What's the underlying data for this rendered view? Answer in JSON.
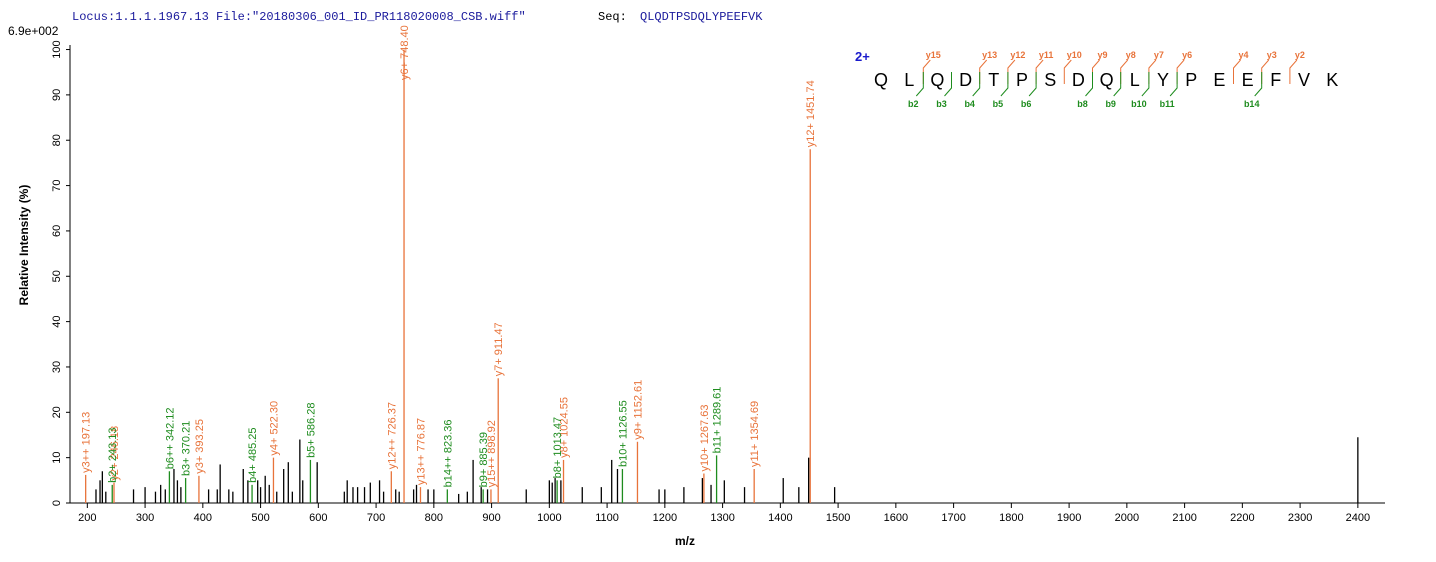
{
  "chart_data": {
    "type": "stick",
    "header": "Locus:1.1.1.1967.13 File:\"20180306_001_ID_PR118020008_CSB.wiff\"",
    "seq_label": "Seq:",
    "sequence": "QLQDTPSDQLYPEEFVK",
    "title": "6.9e+002",
    "y_label": "Relative   Intensity (%)",
    "x_label": "m/z",
    "charge": "2+",
    "xlim": [
      170,
      2447
    ],
    "ylim": [
      0,
      101
    ],
    "xticks": [
      200,
      300,
      400,
      500,
      600,
      700,
      800,
      900,
      1000,
      1100,
      1200,
      1300,
      1400,
      1500,
      1600,
      1700,
      1800,
      1900,
      2000,
      2100,
      2200,
      2300,
      2400
    ],
    "yticks": [
      0,
      10,
      20,
      30,
      40,
      50,
      60,
      70,
      80,
      90,
      100
    ],
    "residues": [
      "Q",
      "L",
      "Q",
      "D",
      "T",
      "P",
      "S",
      "D",
      "Q",
      "L",
      "Y",
      "P",
      "E",
      "E",
      "F",
      "V",
      "K"
    ],
    "y_ions": [
      "y15",
      "y13",
      "y12",
      "y11",
      "y10",
      "y9",
      "y8",
      "y7",
      "y6",
      "y4",
      "y3",
      "y2"
    ],
    "b_ions": [
      "b2",
      "b3",
      "b4",
      "b5",
      "b6",
      "b8",
      "b9",
      "b10",
      "b11",
      "b14"
    ],
    "y_ion_color": "#e8733a",
    "b_ion_color": "#1e8c1e",
    "series": [
      {
        "color": "#000000",
        "x": [
          215,
          222,
          226,
          232,
          280,
          300,
          318,
          327,
          335,
          350,
          356,
          362,
          410,
          425,
          430,
          445,
          452,
          470,
          478,
          495,
          500,
          508,
          515,
          528,
          540,
          548,
          555,
          568,
          573,
          598,
          645,
          650,
          660,
          668,
          680,
          690,
          706,
          713,
          734,
          740,
          765,
          770,
          790,
          800,
          843,
          858,
          868,
          882,
          893,
          960,
          1000,
          1005,
          1010,
          1020,
          1057,
          1090,
          1108,
          1118,
          1190,
          1200,
          1233,
          1265,
          1280,
          1303,
          1338,
          1405,
          1432,
          1449,
          1494,
          2400
        ],
        "values": [
          3,
          5,
          7,
          2.5,
          3,
          3.5,
          2.5,
          4,
          3,
          7.5,
          5,
          3.5,
          3,
          3,
          8.5,
          3,
          2.5,
          7.5,
          5,
          5,
          3.5,
          6,
          4,
          2.5,
          7.5,
          9,
          2.5,
          14,
          5,
          9,
          2.5,
          5,
          3.5,
          3.5,
          3.5,
          4.5,
          5,
          2.5,
          3,
          2.5,
          3,
          4,
          3,
          3,
          2,
          2.5,
          9.5,
          3.5,
          3,
          3,
          5,
          4.5,
          5.5,
          5,
          3.5,
          3.5,
          9.5,
          7.5,
          3,
          3,
          3.5,
          5.5,
          4,
          5,
          3.5,
          5.5,
          3.5,
          10,
          3.5,
          14.5
        ]
      },
      {
        "color": "#e8733a",
        "x": [
          197.13,
          246.18,
          393.25,
          522.3,
          726.37,
          748.4,
          776.87,
          898.92,
          911.47,
          1024.55,
          1152.61,
          1267.63,
          1354.69,
          1451.74
        ],
        "values": [
          6.2,
          4.5,
          6,
          10,
          7,
          100,
          3.5,
          3,
          27.5,
          9.5,
          13.5,
          6.5,
          7.5,
          78
        ],
        "value_labels": [
          "y3++ 197.13",
          "y2+ 246.18",
          "y3+ 393.25",
          "y4+ 522.30",
          "y12++ 726.37",
          "y6+ 748.40",
          "y13++ 776.87",
          "y15++ 898.92",
          "y7+ 911.47",
          "y8+ 1024.55",
          "y9+ 1152.61",
          "y10+ 1267.63",
          "y11+ 1354.69",
          "y12+ 1451.74"
        ]
      },
      {
        "color": "#1e8c1e",
        "x": [
          243.13,
          342.12,
          370.21,
          485.25,
          586.28,
          823.36,
          885.39,
          1013.47,
          1126.55,
          1289.61
        ],
        "values": [
          4,
          7,
          5.5,
          4,
          9.5,
          3,
          3,
          5,
          7.5,
          10.5
        ],
        "value_labels": [
          "b2+ 243.13",
          "b6++ 342.12",
          "b3+ 370.21",
          "b4+ 485.25",
          "b5+ 586.28",
          "b14++ 823.36",
          "b9+ 885.39",
          "b8+ 1013.47",
          "b10+ 1126.55",
          "b11+ 1289.61"
        ]
      }
    ]
  }
}
